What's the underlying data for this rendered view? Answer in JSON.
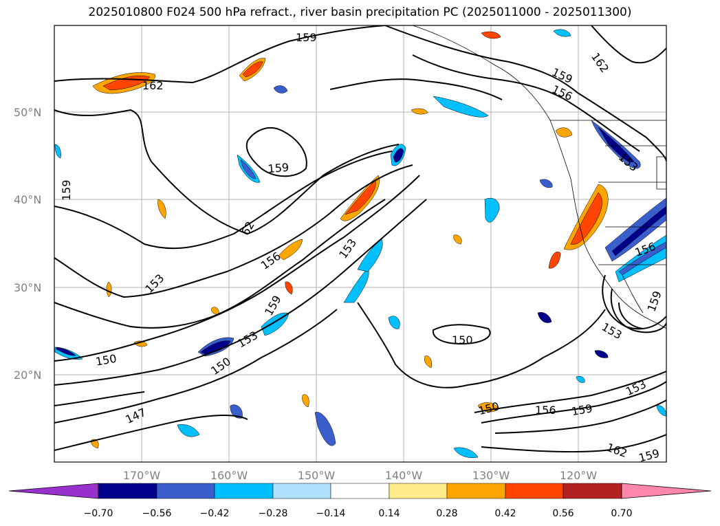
{
  "title": "2025010800 F024 500 hPa refract., river basin precipitation PC (2025011000 - 2025011300)",
  "lat_labels": [
    "50°N",
    "40°N",
    "30°N",
    "20°N"
  ],
  "lon_labels": [
    "170°W",
    "160°W",
    "150°W",
    "140°W",
    "130°W",
    "120°W"
  ],
  "colorbar": {
    "tick_labels": [
      "−0.70",
      "−0.56",
      "−0.42",
      "−0.28",
      "−0.14",
      "0.14",
      "0.28",
      "0.42",
      "0.56",
      "0.70"
    ],
    "colors": [
      "#9932cc",
      "#00008b",
      "#3a5fcd",
      "#00bfff",
      "#b0e2ff",
      "#ffffff",
      "#ffec8b",
      "#ffa500",
      "#ff4500",
      "#b22222",
      "#ff88aa"
    ]
  },
  "contour_labels": [
    {
      "text": "159"
    },
    {
      "text": "162"
    },
    {
      "text": "162"
    },
    {
      "text": "159"
    },
    {
      "text": "156"
    },
    {
      "text": "159"
    },
    {
      "text": "159"
    },
    {
      "text": "153"
    },
    {
      "text": "62"
    },
    {
      "text": "156"
    },
    {
      "text": "153"
    },
    {
      "text": "156"
    },
    {
      "text": "153"
    },
    {
      "text": "159"
    },
    {
      "text": "153"
    },
    {
      "text": "150"
    },
    {
      "text": "150"
    },
    {
      "text": "150"
    },
    {
      "text": "147"
    },
    {
      "text": "153"
    },
    {
      "text": "150"
    },
    {
      "text": "156"
    },
    {
      "text": "159"
    },
    {
      "text": "153"
    },
    {
      "text": "162"
    },
    {
      "text": "159"
    },
    {
      "text": "159"
    }
  ]
}
